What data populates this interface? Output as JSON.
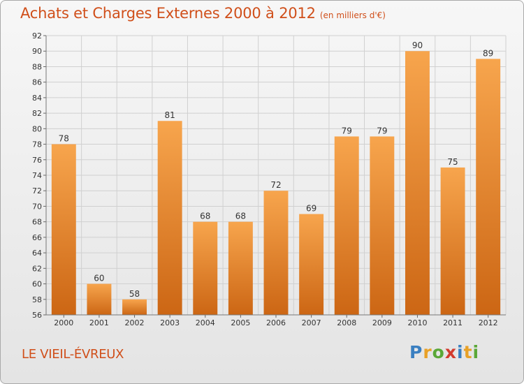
{
  "title": "Achats et Charges Externes 2000 à 2012",
  "subtitle": "(en milliers d'€)",
  "location": "LE VIEIL-ÉVREUX",
  "logo": {
    "text": "Proxiti",
    "colors": [
      "#3a7fc1",
      "#e8a128",
      "#5aa838",
      "#d23b2e",
      "#3a7fc1",
      "#e8a128",
      "#5aa838"
    ]
  },
  "chart_data": {
    "type": "bar",
    "categories": [
      "2000",
      "2001",
      "2002",
      "2003",
      "2004",
      "2005",
      "2006",
      "2007",
      "2008",
      "2009",
      "2010",
      "2011",
      "2012"
    ],
    "values": [
      78,
      60,
      58,
      81,
      68,
      68,
      72,
      69,
      79,
      79,
      90,
      75,
      89
    ],
    "ylim": [
      56,
      92
    ],
    "yticks": [
      56,
      58,
      60,
      62,
      64,
      66,
      68,
      70,
      72,
      74,
      76,
      78,
      80,
      82,
      84,
      86,
      88,
      90,
      92
    ],
    "grid": true,
    "colors": {
      "bar_top": "#f7a54d",
      "bar_bottom": "#cc6614",
      "grid": "#d0d0d0",
      "text": "#333333"
    }
  }
}
